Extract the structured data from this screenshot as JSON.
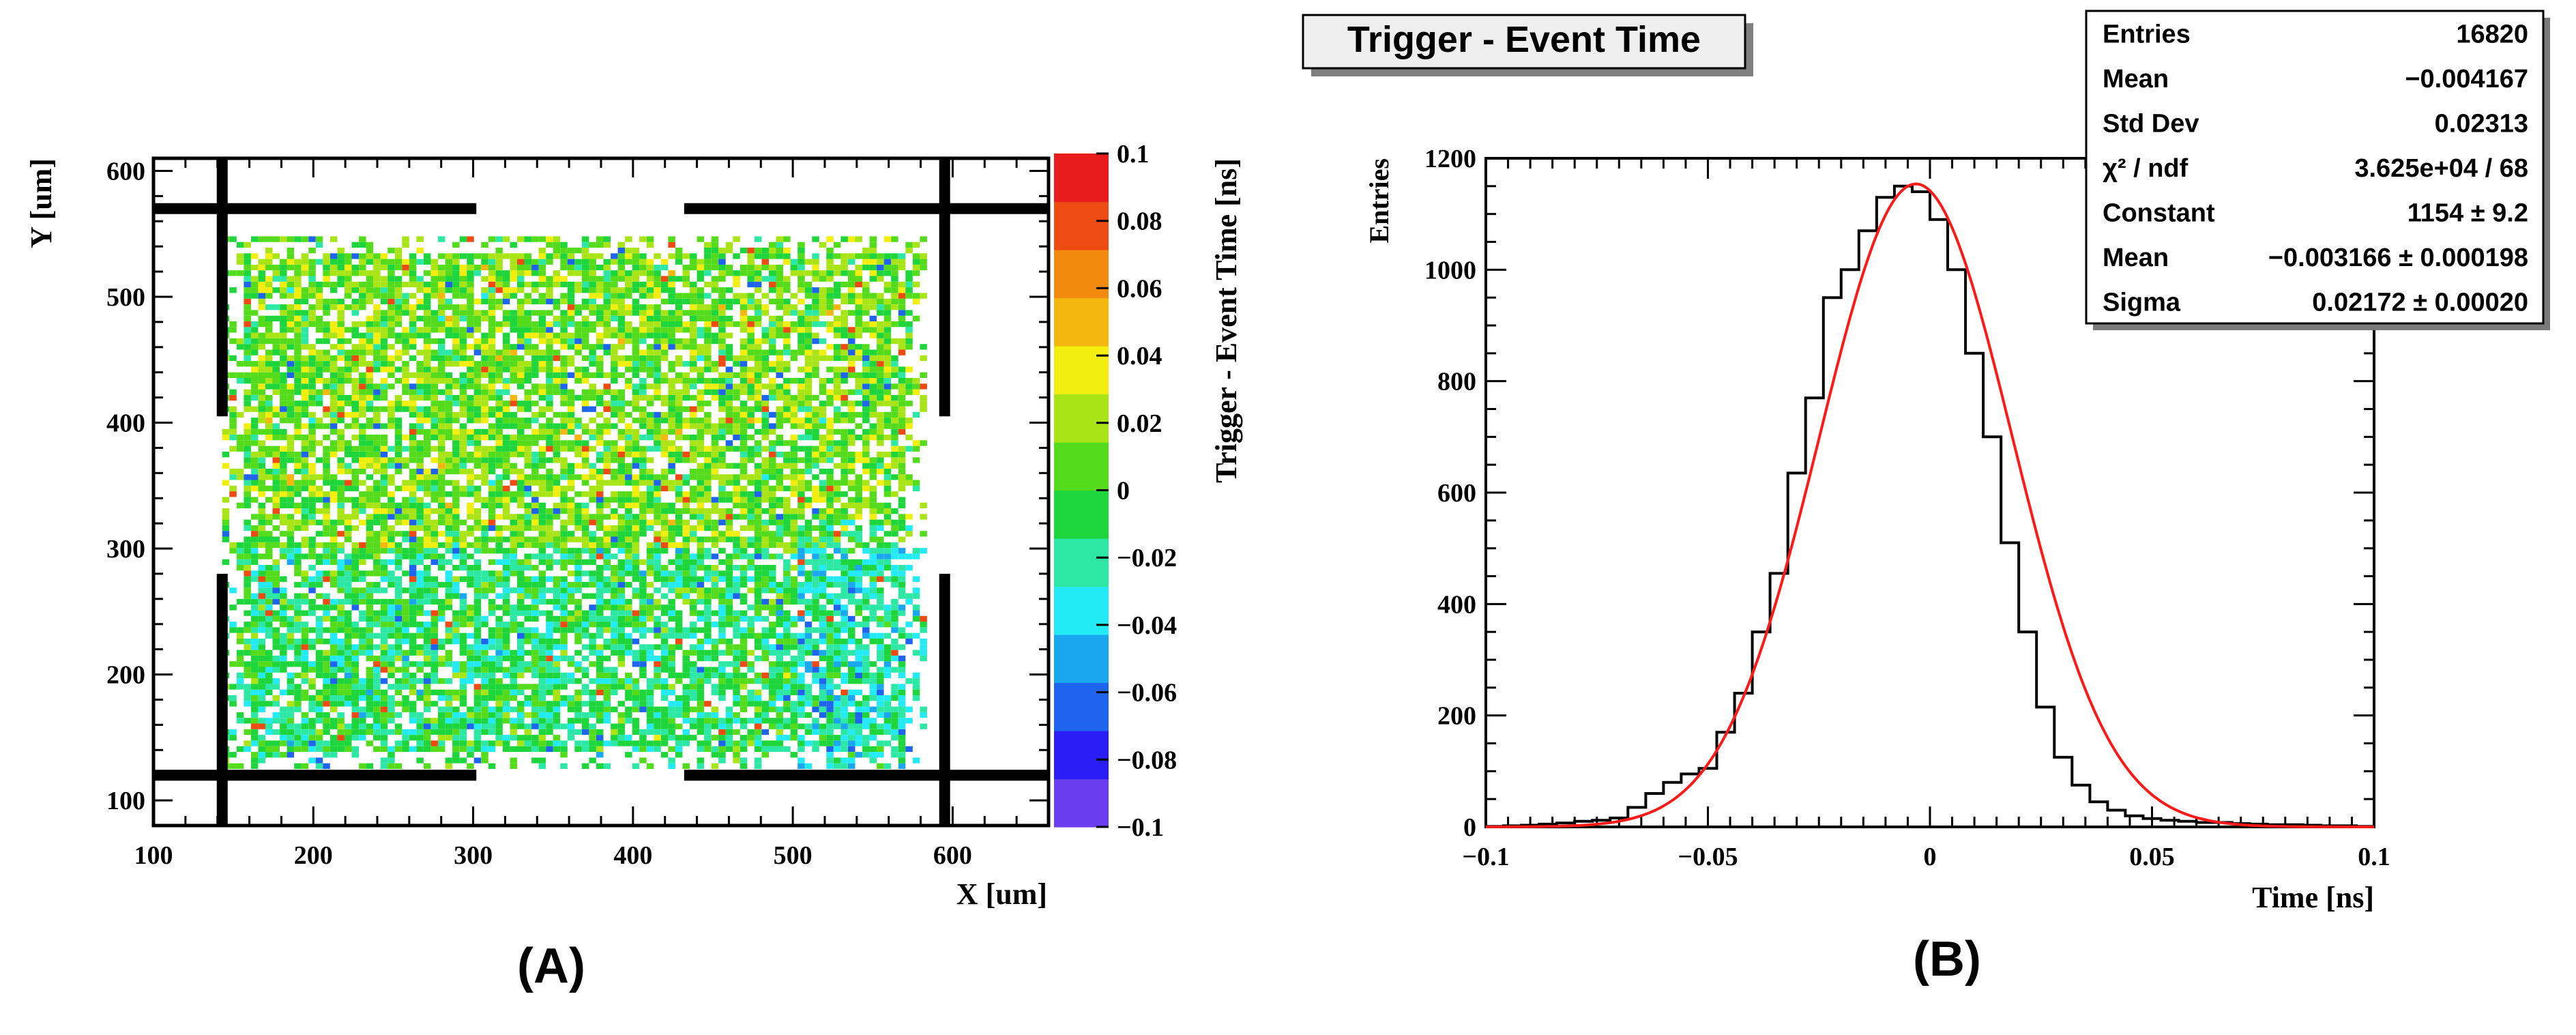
{
  "panel_a": {
    "label": "(A)",
    "chart_data": {
      "type": "heatmap",
      "xlabel": "X [um]",
      "ylabel": "Y [um]",
      "zlabel": "Trigger - Event Time [ns]",
      "xlim": [
        100,
        660
      ],
      "ylim": [
        80,
        610
      ],
      "zlim": [
        -0.1,
        0.1
      ],
      "x_ticks": [
        "100",
        "200",
        "300",
        "400",
        "500",
        "600"
      ],
      "y_ticks": [
        "100",
        "200",
        "300",
        "400",
        "500",
        "600"
      ],
      "z_ticks": [
        "0.1",
        "0.08",
        "0.06",
        "0.04",
        "0.02",
        "0",
        "−0.02",
        "−0.04",
        "−0.06",
        "−0.08",
        "−0.1"
      ],
      "z_tick_values": [
        0.1,
        0.08,
        0.06,
        0.04,
        0.02,
        0,
        -0.02,
        -0.04,
        -0.06,
        -0.08,
        -0.1
      ],
      "palette": [
        "#6a3df0",
        "#2a1df5",
        "#1f64ef",
        "#1aa7f0",
        "#24eaf5",
        "#2de8a4",
        "#1ed63c",
        "#54dc1c",
        "#a8e416",
        "#f2ee10",
        "#f4b70e",
        "#f28a0f",
        "#ee4b13",
        "#e81c1c"
      ],
      "filled_region": {
        "x": [
          143,
          582
        ],
        "y": [
          125,
          545
        ],
        "dominant_value_range": [
          -0.02,
          0.04
        ]
      },
      "overlay_frame": {
        "horizontal_lines_y": [
          570,
          120
        ],
        "horizontal_segments_x": [
          [
            100,
            302
          ],
          [
            432,
            660
          ]
        ],
        "vertical_lines_x": [
          143,
          595
        ],
        "vertical_segments_y": [
          [
            80,
            280
          ],
          [
            405,
            610
          ]
        ]
      }
    }
  },
  "panel_b": {
    "label": "(B)",
    "title": "Trigger - Event Time",
    "stats": [
      {
        "key": "Entries",
        "value": "16820"
      },
      {
        "key": "Mean",
        "value": "−0.004167"
      },
      {
        "key": "Std Dev",
        "value": "0.02313"
      },
      {
        "key": "χ² / ndf",
        "value": "3.625e+04 / 68"
      },
      {
        "key": "Constant",
        "value": "1154 ± 9.2"
      },
      {
        "key": "Mean",
        "value": "−0.003166 ± 0.000198"
      },
      {
        "key": "Sigma",
        "value": "0.02172 ± 0.00020"
      }
    ],
    "chart_data": {
      "type": "line",
      "xlabel": "Time [ns]",
      "ylabel": "Entries",
      "xlim": [
        -0.1,
        0.1
      ],
      "ylim": [
        0,
        1200
      ],
      "x_ticks": [
        -0.1,
        -0.05,
        0,
        0.05,
        0.1
      ],
      "x_tick_labels": [
        "−0.1",
        "−0.05",
        "0",
        "0.05",
        "0.1"
      ],
      "y_ticks": [
        0,
        200,
        400,
        600,
        800,
        1000,
        1200
      ],
      "y_tick_labels": [
        "0",
        "200",
        "400",
        "600",
        "800",
        "1000",
        "1200"
      ],
      "series": [
        {
          "type": "histogram-step",
          "color": "#000000",
          "bin_width": 0.004,
          "x": [
            -0.098,
            -0.094,
            -0.09,
            -0.086,
            -0.082,
            -0.078,
            -0.074,
            -0.07,
            -0.066,
            -0.062,
            -0.058,
            -0.054,
            -0.05,
            -0.046,
            -0.042,
            -0.038,
            -0.034,
            -0.03,
            -0.026,
            -0.022,
            -0.018,
            -0.014,
            -0.01,
            -0.006,
            -0.002,
            0.002,
            0.006,
            0.01,
            0.014,
            0.018,
            0.022,
            0.026,
            0.03,
            0.034,
            0.038,
            0.042,
            0.046,
            0.05,
            0.054,
            0.058,
            0.062,
            0.066,
            0.07,
            0.074,
            0.078,
            0.082,
            0.086,
            0.09,
            0.094,
            0.098
          ],
          "y": [
            1,
            2,
            3,
            5,
            7,
            10,
            12,
            16,
            35,
            60,
            80,
            95,
            105,
            170,
            240,
            350,
            455,
            635,
            770,
            950,
            1000,
            1070,
            1130,
            1150,
            1140,
            1090,
            1000,
            850,
            700,
            510,
            350,
            215,
            125,
            75,
            45,
            30,
            20,
            15,
            12,
            10,
            8,
            8,
            6,
            5,
            4,
            4,
            3,
            2,
            2,
            1
          ]
        },
        {
          "type": "gaussian-fit",
          "color": "#ff1a1a",
          "constant": 1154,
          "mean": -0.003166,
          "sigma": 0.02172
        }
      ]
    }
  }
}
